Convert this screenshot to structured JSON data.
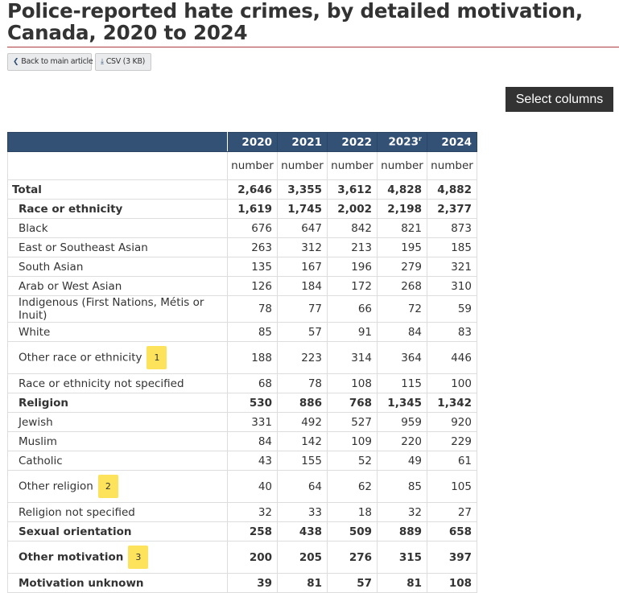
{
  "page": {
    "title": "Police-reported hate crimes, by detailed motivation, Canada, 2020 to 2024"
  },
  "toolbar": {
    "back_label": "Back to main article",
    "csv_label": "CSV (3 KB)",
    "select_columns_label": "Select columns"
  },
  "table": {
    "years": [
      "2020",
      "2021",
      "2022",
      "2023",
      "2024"
    ],
    "year_2023_flag": "r",
    "unit": "number",
    "rows": [
      {
        "label": "Total",
        "values": [
          "2,646",
          "3,355",
          "3,612",
          "4,828",
          "4,882"
        ]
      },
      {
        "label": "Race or ethnicity",
        "values": [
          "1,619",
          "1,745",
          "2,002",
          "2,198",
          "2,377"
        ]
      },
      {
        "label": "Black",
        "values": [
          "676",
          "647",
          "842",
          "821",
          "873"
        ]
      },
      {
        "label": "East or Southeast Asian",
        "values": [
          "263",
          "312",
          "213",
          "195",
          "185"
        ]
      },
      {
        "label": "South Asian",
        "values": [
          "135",
          "167",
          "196",
          "279",
          "321"
        ]
      },
      {
        "label": "Arab or West Asian",
        "values": [
          "126",
          "184",
          "172",
          "268",
          "310"
        ]
      },
      {
        "label": "Indigenous (First Nations, Métis or Inuit)",
        "values": [
          "78",
          "77",
          "66",
          "72",
          "59"
        ]
      },
      {
        "label": "White",
        "values": [
          "85",
          "57",
          "91",
          "84",
          "83"
        ]
      },
      {
        "label": "Other race or ethnicity",
        "footnote": "1",
        "values": [
          "188",
          "223",
          "314",
          "364",
          "446"
        ]
      },
      {
        "label": "Race or ethnicity not specified",
        "values": [
          "68",
          "78",
          "108",
          "115",
          "100"
        ]
      },
      {
        "label": "Religion",
        "values": [
          "530",
          "886",
          "768",
          "1,345",
          "1,342"
        ]
      },
      {
        "label": "Jewish",
        "values": [
          "331",
          "492",
          "527",
          "959",
          "920"
        ]
      },
      {
        "label": "Muslim",
        "values": [
          "84",
          "142",
          "109",
          "220",
          "229"
        ]
      },
      {
        "label": "Catholic",
        "values": [
          "43",
          "155",
          "52",
          "49",
          "61"
        ]
      },
      {
        "label": "Other religion",
        "footnote": "2",
        "values": [
          "40",
          "64",
          "62",
          "85",
          "105"
        ]
      },
      {
        "label": "Religion not specified",
        "values": [
          "32",
          "33",
          "18",
          "32",
          "27"
        ]
      },
      {
        "label": "Sexual orientation",
        "values": [
          "258",
          "438",
          "509",
          "889",
          "658"
        ]
      },
      {
        "label": "Other motivation",
        "footnote": "3",
        "values": [
          "200",
          "205",
          "276",
          "315",
          "397"
        ]
      },
      {
        "label": "Motivation unknown",
        "values": [
          "39",
          "81",
          "57",
          "81",
          "108"
        ]
      }
    ]
  }
}
